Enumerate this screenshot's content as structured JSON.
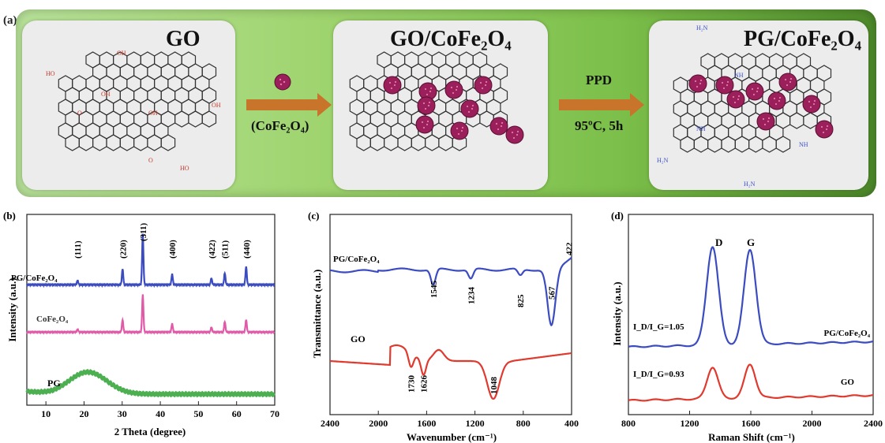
{
  "panel_a": {
    "letter": "(a)",
    "card_titles": [
      "GO",
      "GO/CoFe₂O₄",
      "PG/CoFe₂O₄"
    ],
    "arrow1_label": "(CoFe₂O₄)",
    "arrow2_label_top": "PPD",
    "arrow2_label_bottom": "95ºC, 5h",
    "struct_labels": {
      "oh": "OH",
      "ho": "HO",
      "o": "O",
      "nh": "NH",
      "h2n": "H₂N"
    },
    "colors": {
      "arrow": "#c8742a",
      "nanoparticle": "#9a1f5a",
      "amine": "#3b4fc4"
    }
  },
  "chart_data": [
    {
      "panel": "(b)",
      "type": "line",
      "xlabel": "2 Theta (degree)",
      "ylabel": "Intensity (a.u.)",
      "xlim": [
        5,
        70
      ],
      "xticks": [
        "10",
        "20",
        "30",
        "40",
        "50",
        "60",
        "70"
      ],
      "series": [
        {
          "name": "PG/CoFe₂O₄",
          "color": "#3b4cc0",
          "peaks": [
            [
              18.3,
              4
            ],
            [
              30.1,
              15
            ],
            [
              35.4,
              48
            ],
            [
              43.1,
              10
            ],
            [
              53.4,
              6
            ],
            [
              56.9,
              11
            ],
            [
              62.5,
              17
            ]
          ]
        },
        {
          "name": "CoFe₂O₄",
          "color": "#e05aa8",
          "peaks": [
            [
              18.3,
              3
            ],
            [
              30.1,
              13
            ],
            [
              35.4,
              40
            ],
            [
              43.1,
              9
            ],
            [
              53.4,
              5
            ],
            [
              56.9,
              11
            ],
            [
              62.5,
              13
            ]
          ]
        },
        {
          "name": "PG",
          "color": "#4caf50",
          "broad_peak": [
            21,
            14
          ]
        }
      ],
      "annotations": [
        "(111)",
        "(220)",
        "(311)",
        "(400)",
        "(422)",
        "(511)",
        "(440)"
      ],
      "annotation_x": [
        18.3,
        30.1,
        35.4,
        43.1,
        53.4,
        56.9,
        62.5
      ]
    },
    {
      "panel": "(c)",
      "type": "line",
      "xlabel": "Wavenumber (cm⁻¹)",
      "ylabel": "Transmittance (a.u.)",
      "xlim": [
        2400,
        400
      ],
      "xticks": [
        "2400",
        "2000",
        "1600",
        "1200",
        "800",
        "400"
      ],
      "series": [
        {
          "name": "PG/CoFe₂O₄",
          "color": "#3b4cc0",
          "dips": [
            [
              1545,
              20
            ],
            [
              1234,
              12
            ],
            [
              825,
              8
            ],
            [
              567,
              72
            ]
          ]
        },
        {
          "name": "GO",
          "color": "#e03a2f",
          "dips": [
            [
              1730,
              18
            ],
            [
              1626,
              20
            ],
            [
              1048,
              48
            ]
          ]
        }
      ],
      "annotations": [
        "1545",
        "1234",
        "825",
        "567",
        "422",
        "1730",
        "1626",
        "1048"
      ]
    },
    {
      "panel": "(d)",
      "type": "line",
      "xlabel": "Raman Shift (cm⁻¹)",
      "ylabel": "Intensity (a.u.)",
      "xlim": [
        800,
        2400
      ],
      "xticks": [
        "800",
        "1200",
        "1600",
        "2000",
        "2400"
      ],
      "series": [
        {
          "name": "PG/CoFe₂O₄",
          "color": "#3b4cc0",
          "peaks": [
            [
              1350,
              100
            ],
            [
              1595,
              96
            ]
          ],
          "ratio_label": "I_D/I_G=1.05"
        },
        {
          "name": "GO",
          "color": "#e03a2f",
          "peaks": [
            [
              1350,
              32
            ],
            [
              1595,
              34
            ]
          ],
          "ratio_label": "I_D/I_G=0.93"
        }
      ],
      "annotations": [
        "D",
        "G"
      ]
    }
  ]
}
